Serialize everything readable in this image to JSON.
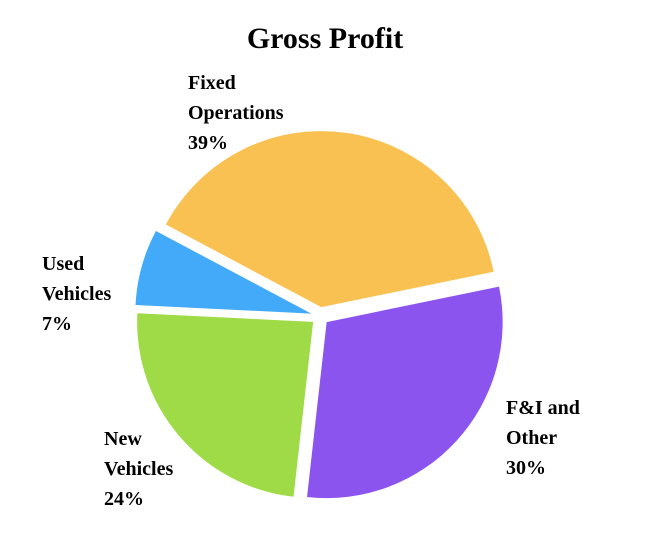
{
  "chart_data": {
    "type": "pie",
    "title": "Gross Profit",
    "slices": [
      {
        "label_lines": [
          "Fixed",
          "Operations",
          "39%"
        ],
        "name": "Fixed Operations",
        "value": 39,
        "color": "#F9C152"
      },
      {
        "label_lines": [
          "F&I and",
          "Other",
          "30%"
        ],
        "name": "F&I and Other",
        "value": 30,
        "color": "#8C54EE"
      },
      {
        "label_lines": [
          "New",
          "Vehicles",
          "24%"
        ],
        "name": "New Vehicles",
        "value": 24,
        "color": "#9EDB47"
      },
      {
        "label_lines": [
          "Used",
          "Vehicles",
          "7%"
        ],
        "name": "Used Vehicles",
        "value": 7,
        "color": "#42AAF8"
      }
    ],
    "legend": "none",
    "exploded": true
  }
}
